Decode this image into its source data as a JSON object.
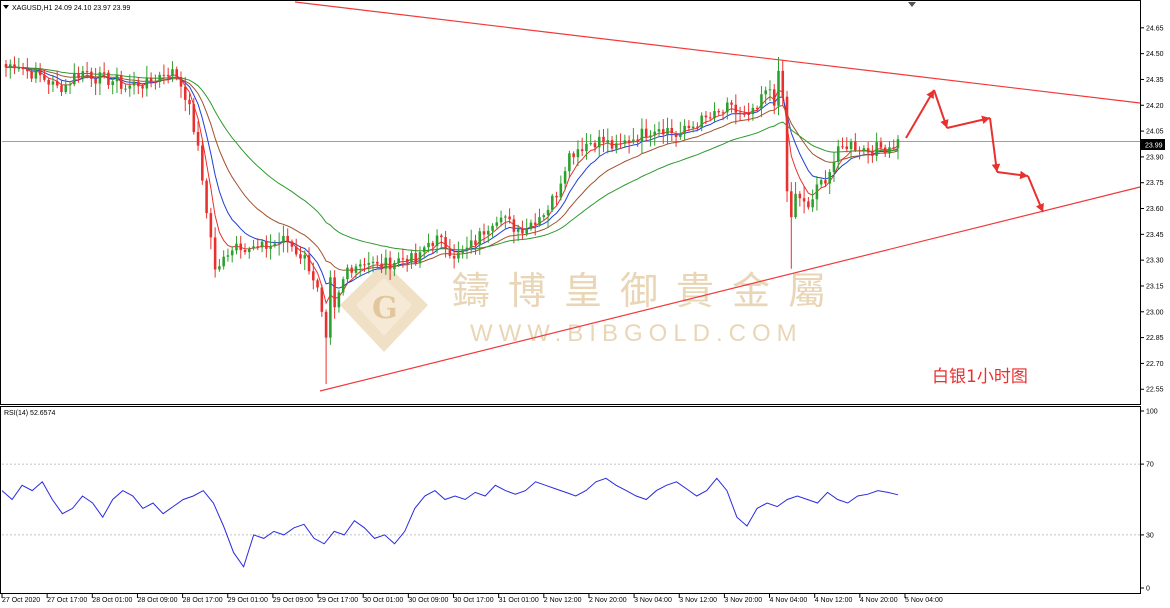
{
  "symbol_header": "XAGUSD,H1  24.09 24.10 23.97 23.99",
  "watermark": {
    "cn": "鑄博皇御貴金屬",
    "url": "WWW.BIBGOLD.COM",
    "logo_letter": "G"
  },
  "annotation": "白银1小时图",
  "rsi_label": "RSI(14) 52.6574",
  "colors": {
    "bull": "#2ca02c",
    "bear": "#e8312f",
    "ma_fast": "#e8312f",
    "ma_blue": "#1f3fd6",
    "ma_brown": "#a0522d",
    "ma_green": "#2e9a2e",
    "trendline": "#f03a3a",
    "rsi_line": "#2a2ae0",
    "arrow": "#e8312f"
  },
  "chart_data": [
    {
      "type": "candlestick",
      "title": "XAGUSD,H1",
      "ohlc_header": {
        "open": 24.09,
        "high": 24.1,
        "low": 23.97,
        "close": 23.99
      },
      "last_price": "23.99",
      "last_price_value": 23.99,
      "ylim": [
        22.47,
        24.8
      ],
      "y_ticks": [
        "24.65",
        "24.50",
        "24.35",
        "24.20",
        "24.05",
        "23.90",
        "23.75",
        "23.60",
        "23.45",
        "23.30",
        "23.15",
        "23.00",
        "22.85",
        "22.70",
        "22.55"
      ],
      "x_tick_labels": [
        "27 Oct 2020",
        "27 Oct 17:00",
        "28 Oct 01:00",
        "28 Oct 09:00",
        "28 Oct 17:00",
        "29 Oct 01:00",
        "29 Oct 09:00",
        "29 Oct 17:00",
        "30 Oct 01:00",
        "30 Oct 09:00",
        "30 Oct 17:00",
        "31 Oct 01:00",
        "2 Nov 12:00",
        "2 Nov 20:00",
        "3 Nov 04:00",
        "3 Nov 12:00",
        "3 Nov 20:00",
        "4 Nov 04:00",
        "4 Nov 12:00",
        "4 Nov 20:00",
        "5 Nov 04:00"
      ],
      "close_path": [
        24.42,
        24.45,
        24.4,
        24.38,
        24.35,
        24.3,
        24.32,
        24.38,
        24.4,
        24.36,
        24.35,
        24.34,
        24.3,
        24.33,
        24.32,
        24.36,
        24.4,
        24.38,
        24.25,
        24.0,
        23.6,
        23.2,
        23.35,
        23.4,
        23.38,
        23.36,
        23.38,
        23.4,
        23.42,
        23.35,
        23.3,
        23.15,
        22.8,
        23.05,
        23.25,
        23.28,
        23.3,
        23.26,
        23.28,
        23.3,
        23.32,
        23.28,
        23.4,
        23.42,
        23.38,
        23.32,
        23.36,
        23.42,
        23.5,
        23.56,
        23.52,
        23.48,
        23.5,
        23.55,
        23.6,
        23.7,
        23.9,
        23.95,
        23.98,
        24.0,
        23.98,
        23.94,
        24.0,
        24.02,
        24.05,
        24.08,
        24.06,
        24.02,
        24.06,
        24.1,
        24.12,
        24.14,
        24.18,
        24.16,
        24.12,
        24.18,
        24.3,
        24.15,
        23.85,
        23.65,
        23.6,
        23.72,
        23.8,
        23.92,
        23.98,
        23.96,
        23.94,
        23.95,
        23.96,
        23.99
      ],
      "series": [
        {
          "name": "RSI(14)",
          "current": 52.6574
        }
      ]
    },
    {
      "type": "line",
      "title": "RSI(14) 52.6574",
      "ylim": [
        0,
        100
      ],
      "y_ticks": [
        "100",
        "70",
        "30",
        "0"
      ],
      "values": [
        55,
        50,
        58,
        55,
        60,
        50,
        42,
        45,
        52,
        48,
        40,
        50,
        55,
        52,
        45,
        48,
        42,
        46,
        50,
        52,
        55,
        48,
        35,
        20,
        12,
        30,
        28,
        32,
        30,
        34,
        36,
        28,
        25,
        32,
        30,
        38,
        34,
        28,
        30,
        25,
        32,
        45,
        52,
        55,
        50,
        52,
        50,
        54,
        52,
        58,
        55,
        53,
        55,
        60,
        58,
        56,
        54,
        52,
        55,
        60,
        62,
        58,
        55,
        52,
        50,
        55,
        58,
        60,
        56,
        52,
        55,
        62,
        55,
        40,
        35,
        45,
        48,
        46,
        50,
        52,
        50,
        48,
        54,
        50,
        48,
        52,
        53,
        55,
        54,
        52.66
      ]
    }
  ]
}
